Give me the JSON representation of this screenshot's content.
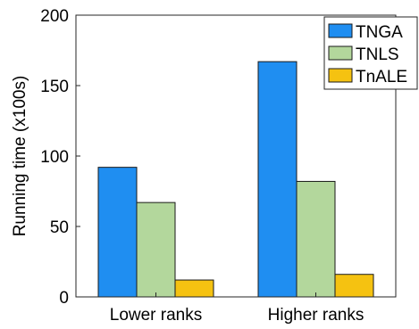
{
  "chart_data": {
    "type": "bar",
    "categories": [
      "Lower ranks",
      "Higher ranks"
    ],
    "series": [
      {
        "name": "TNGA",
        "values": [
          92,
          167
        ],
        "color": "#1f8ef1"
      },
      {
        "name": "TNLS",
        "values": [
          67,
          82
        ],
        "color": "#b3d79c"
      },
      {
        "name": "TnALE",
        "values": [
          12,
          16
        ],
        "color": "#f5c211"
      }
    ],
    "title": "",
    "xlabel": "",
    "ylabel": "Running time (x100s)",
    "ylim": [
      0,
      200
    ],
    "yticks": [
      0,
      50,
      100,
      150,
      200
    ],
    "grid": false,
    "legend_position": "top-right"
  }
}
